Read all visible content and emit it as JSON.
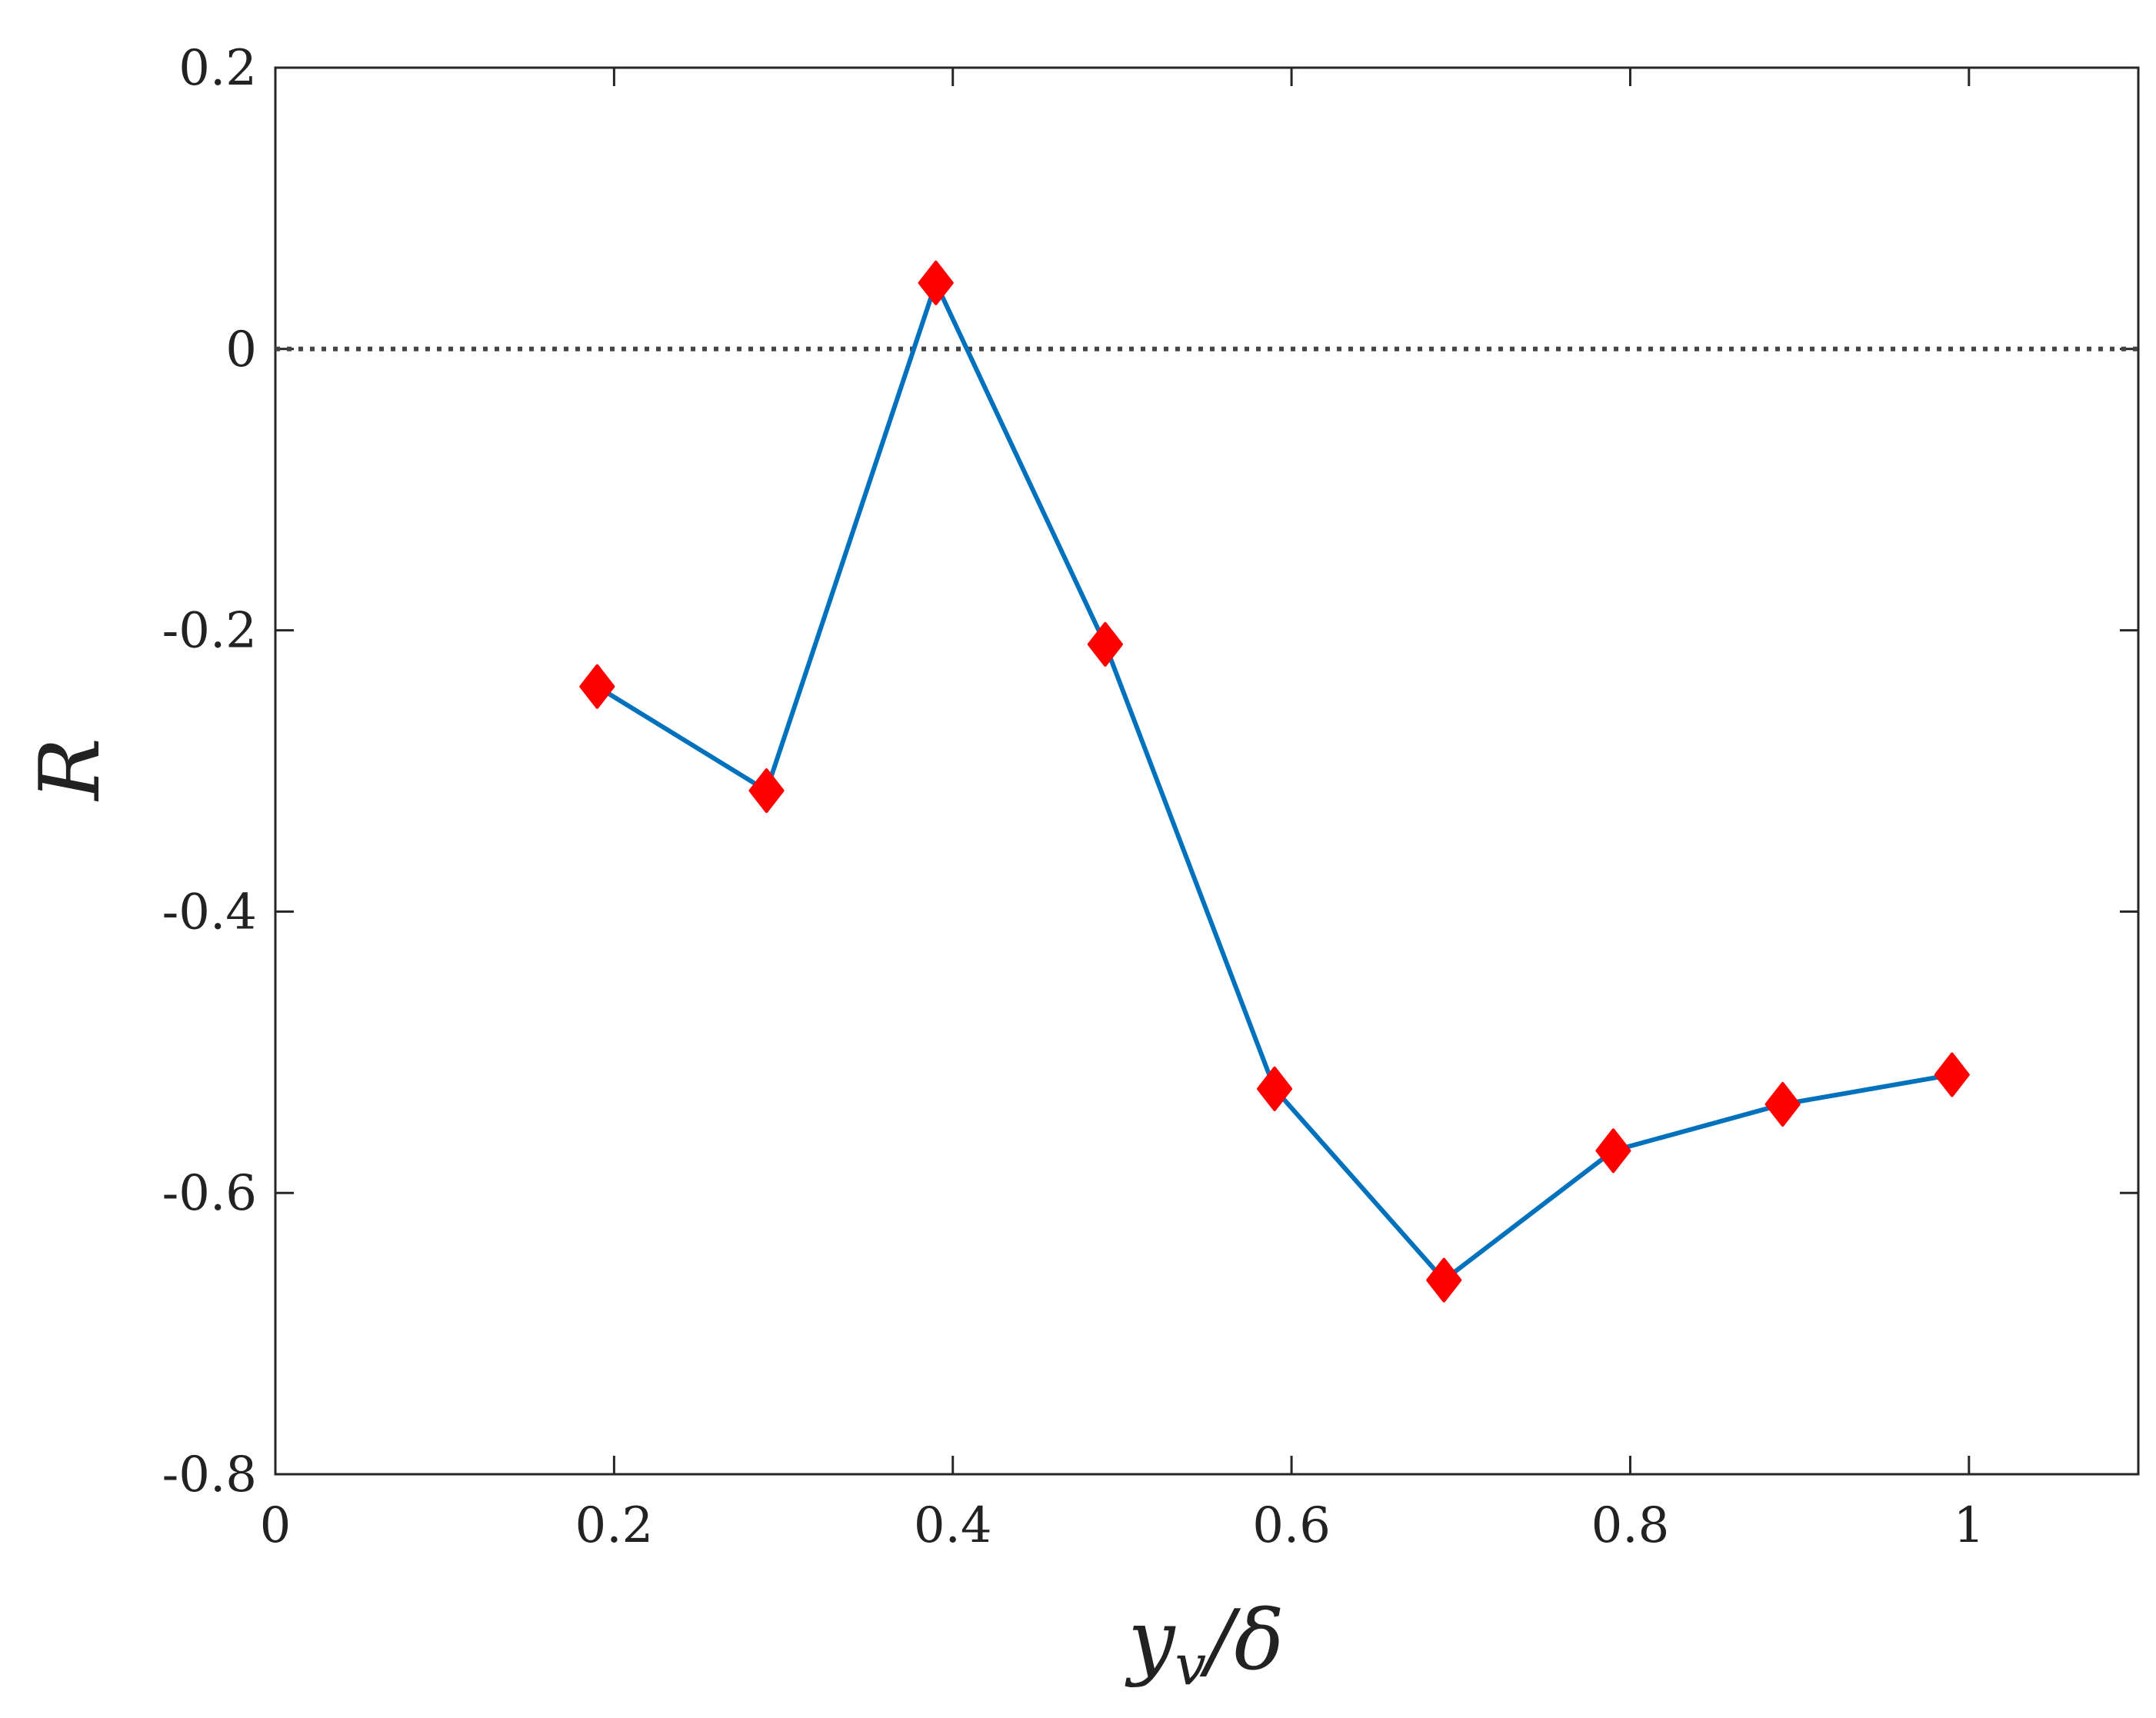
{
  "chart_data": {
    "type": "line",
    "xlabel": "y_v/δ",
    "xlabel_main": "y",
    "xlabel_sub": "v",
    "xlabel_rest": "/δ",
    "ylabel": "R",
    "xlim": [
      0,
      1.1
    ],
    "ylim": [
      -0.8,
      0.2
    ],
    "xticks": [
      0,
      0.2,
      0.4,
      0.6,
      0.8,
      1
    ],
    "xtick_labels": [
      "0",
      "0.2",
      "0.4",
      "0.6",
      "0.8",
      "1"
    ],
    "yticks": [
      -0.8,
      -0.6,
      -0.4,
      -0.2,
      0,
      0.2
    ],
    "ytick_labels": [
      "-0.8",
      "-0.6",
      "-0.4",
      "-0.2",
      "0",
      "0.2"
    ],
    "grid": false,
    "reference_line": {
      "y": 0,
      "style": "dotted",
      "color": "#444444"
    },
    "series": [
      {
        "line_color": "#0072BD",
        "marker": "diamond",
        "marker_color": "#FF0000",
        "x": [
          0.19,
          0.29,
          0.39,
          0.49,
          0.59,
          0.69,
          0.79,
          0.89,
          0.99
        ],
        "y": [
          -0.24,
          -0.314,
          0.047,
          -0.21,
          -0.526,
          -0.662,
          -0.57,
          -0.537,
          -0.516
        ]
      }
    ]
  }
}
